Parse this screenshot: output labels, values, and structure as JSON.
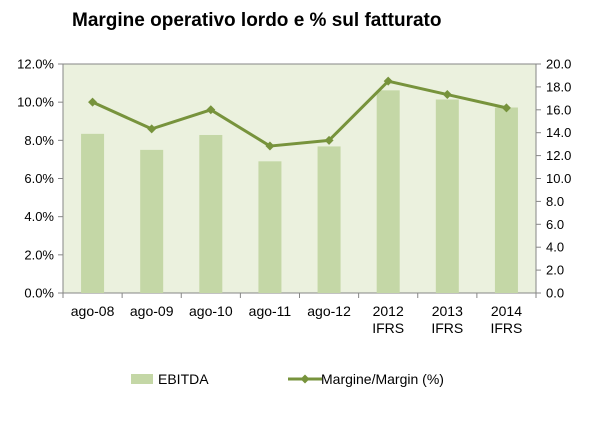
{
  "chart_data": {
    "type": "bar",
    "title": "Margine operativo lordo e % sul fatturato",
    "categories": [
      [
        "ago-08"
      ],
      [
        "ago-09"
      ],
      [
        "ago-10"
      ],
      [
        "ago-11"
      ],
      [
        "ago-12"
      ],
      [
        "2012",
        "IFRS"
      ],
      [
        "2013",
        "IFRS"
      ],
      [
        "2014",
        "IFRS"
      ]
    ],
    "series": [
      {
        "name": "EBITDA",
        "type": "bar",
        "axis": "right",
        "color": "#c4d7a6",
        "values": [
          13.9,
          12.5,
          13.8,
          11.5,
          12.8,
          17.7,
          16.9,
          16.2
        ]
      },
      {
        "name": "Margine/Margin (%)",
        "type": "line",
        "axis": "left",
        "color": "#77933c",
        "marker": "diamond",
        "values": [
          10.0,
          8.6,
          9.6,
          7.7,
          8.0,
          11.1,
          10.4,
          9.7
        ]
      }
    ],
    "y_left": {
      "ylim": [
        0,
        12
      ],
      "ticks": [
        "0.0%",
        "2.0%",
        "4.0%",
        "6.0%",
        "8.0%",
        "10.0%",
        "12.0%"
      ]
    },
    "y_right": {
      "ylim": [
        0,
        20
      ],
      "ticks": [
        "0.0",
        "2.0",
        "4.0",
        "6.0",
        "8.0",
        "10.0",
        "12.0",
        "14.0",
        "16.0",
        "18.0",
        "20.0"
      ]
    },
    "grid": false,
    "plot_background": "#ebf1de",
    "legend_position": "bottom"
  }
}
